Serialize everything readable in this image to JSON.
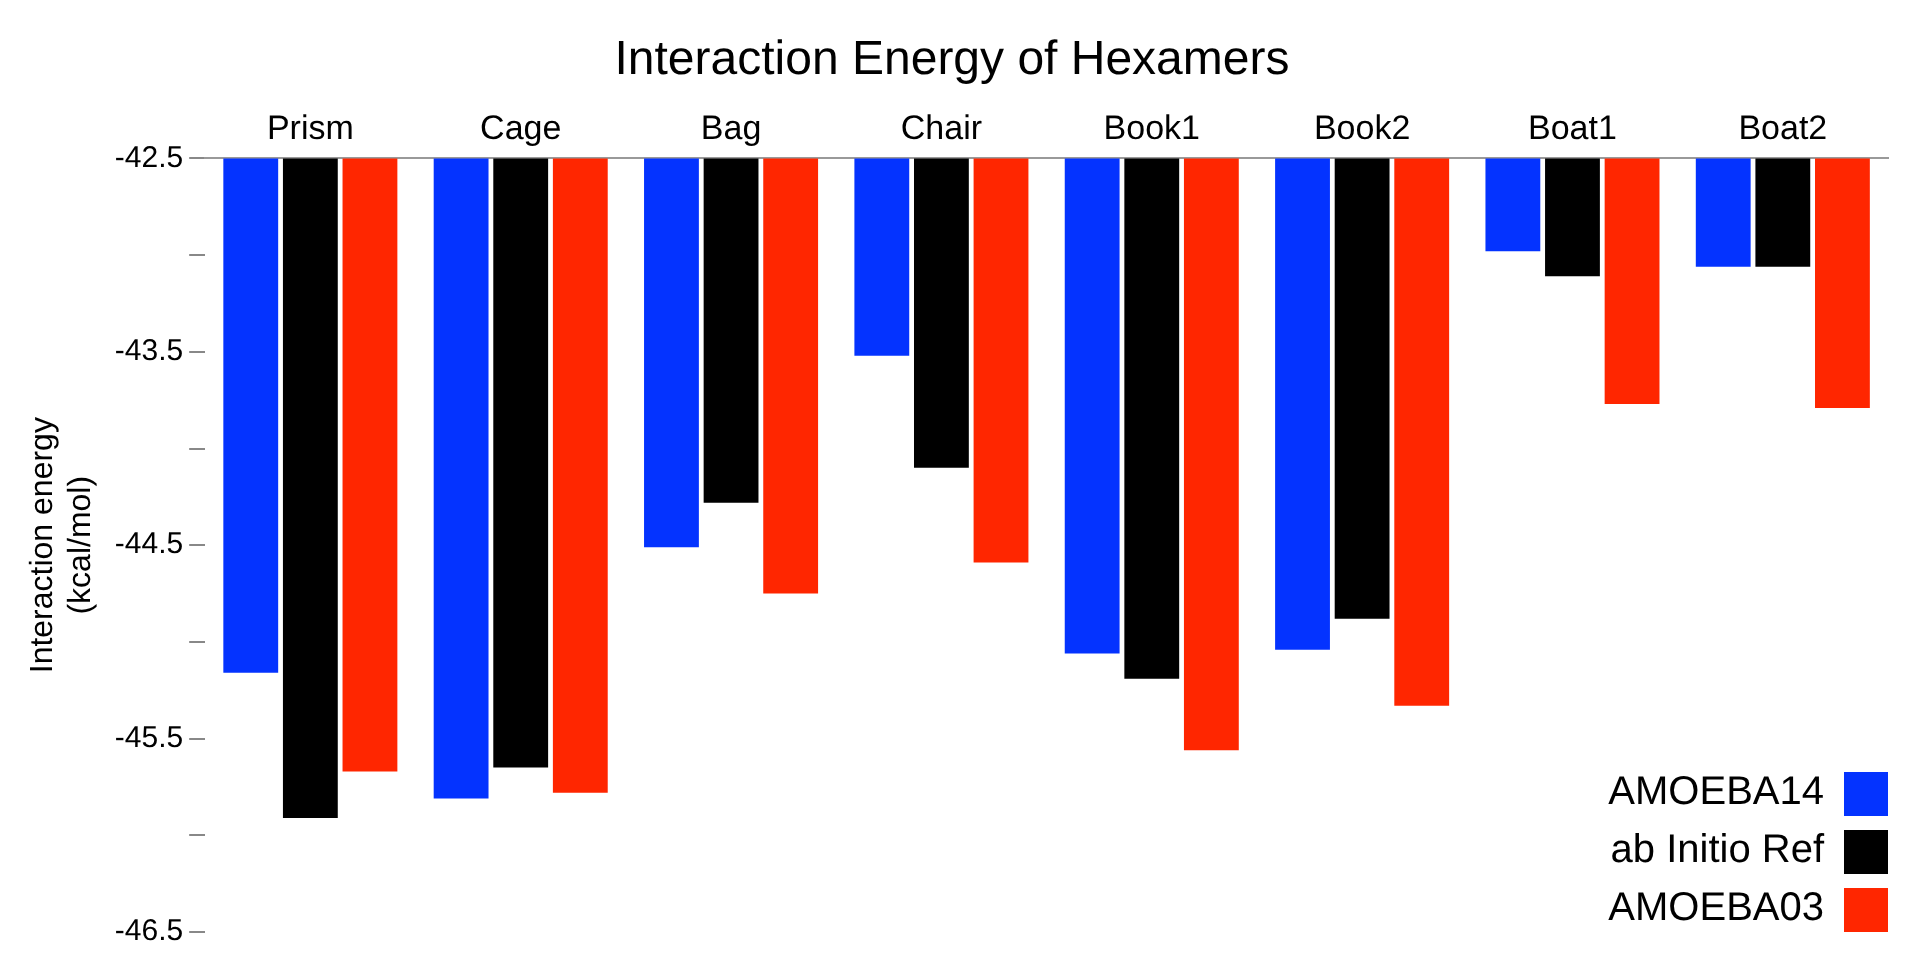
{
  "chart_data": {
    "type": "bar",
    "title": "Interaction Energy of Hexamers",
    "ylabel": "Interaction energy\n(kcal/mol)",
    "categories": [
      "Prism",
      "Cage",
      "Bag",
      "Chair",
      "Book1",
      "Book2",
      "Boat1",
      "Boat2"
    ],
    "series": [
      {
        "name": "AMOEBA14",
        "color": "#0433ff",
        "values": [
          -45.16,
          -45.81,
          -44.51,
          -43.52,
          -45.06,
          -45.04,
          -42.98,
          -43.06
        ]
      },
      {
        "name": "ab Initio Ref",
        "color": "#000000",
        "values": [
          -45.91,
          -45.65,
          -44.28,
          -44.1,
          -45.19,
          -44.88,
          -43.11,
          -43.06
        ]
      },
      {
        "name": "AMOEBA03",
        "color": "#ff2600",
        "values": [
          -45.67,
          -45.78,
          -44.75,
          -44.59,
          -45.56,
          -45.33,
          -43.77,
          -43.79
        ]
      }
    ],
    "ylim": [
      -46.5,
      -42.5
    ],
    "yticks": [
      -42.5,
      {
        "value": -43,
        "label": null
      },
      -43.5,
      {
        "value": -44,
        "label": null
      },
      -44.5,
      {
        "value": -45,
        "label": null
      },
      -45.5,
      {
        "value": -46,
        "label": null
      },
      -46.5
    ],
    "grid": false,
    "legend": "bottom right"
  }
}
